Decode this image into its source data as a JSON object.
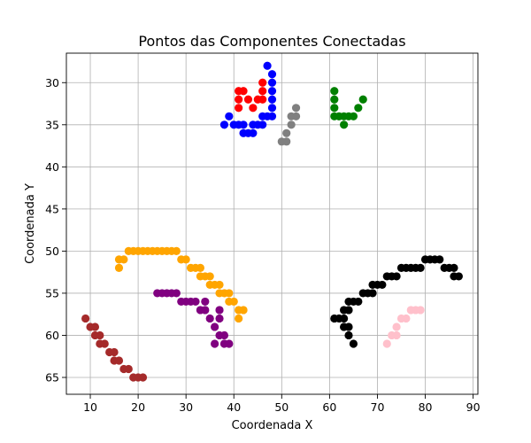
{
  "chart_data": {
    "type": "scatter",
    "title": "Pontos das Componentes Conectadas",
    "xlabel": "Coordenada X",
    "ylabel": "Coordenada Y",
    "xlim": [
      5,
      91
    ],
    "ylim": [
      67,
      26.5
    ],
    "y_inverted": true,
    "grid": true,
    "xticks": [
      10,
      20,
      30,
      40,
      50,
      60,
      70,
      80,
      90
    ],
    "yticks": [
      30,
      35,
      40,
      45,
      50,
      55,
      60,
      65
    ],
    "series": [
      {
        "color": "#ff0000",
        "points": [
          [
            41,
            31
          ],
          [
            42,
            31
          ],
          [
            43,
            32
          ],
          [
            41,
            32
          ],
          [
            41,
            33
          ],
          [
            44,
            33
          ],
          [
            45,
            32
          ],
          [
            46,
            32
          ],
          [
            46,
            31
          ],
          [
            46,
            30
          ]
        ]
      },
      {
        "color": "#0000ff",
        "points": [
          [
            47,
            28
          ],
          [
            48,
            29
          ],
          [
            48,
            30
          ],
          [
            48,
            31
          ],
          [
            48,
            32
          ],
          [
            48,
            33
          ],
          [
            48,
            34
          ],
          [
            47,
            34
          ],
          [
            46,
            34
          ],
          [
            46,
            35
          ],
          [
            45,
            35
          ],
          [
            44,
            36
          ],
          [
            43,
            36
          ],
          [
            42,
            36
          ],
          [
            42,
            35
          ],
          [
            41,
            35
          ],
          [
            40,
            35
          ],
          [
            38,
            35
          ],
          [
            39,
            34
          ],
          [
            44,
            35
          ]
        ]
      },
      {
        "color": "#808080",
        "points": [
          [
            53,
            33
          ],
          [
            53,
            34
          ],
          [
            52,
            34
          ],
          [
            52,
            35
          ],
          [
            51,
            36
          ],
          [
            51,
            37
          ],
          [
            50,
            37
          ]
        ]
      },
      {
        "color": "#008000",
        "points": [
          [
            61,
            31
          ],
          [
            61,
            32
          ],
          [
            61,
            33
          ],
          [
            61,
            34
          ],
          [
            62,
            34
          ],
          [
            63,
            34
          ],
          [
            64,
            34
          ],
          [
            65,
            34
          ],
          [
            66,
            33
          ],
          [
            67,
            32
          ],
          [
            63,
            35
          ]
        ]
      },
      {
        "color": "#ffa500",
        "points": [
          [
            16,
            52
          ],
          [
            16,
            51
          ],
          [
            17,
            51
          ],
          [
            18,
            50
          ],
          [
            19,
            50
          ],
          [
            20,
            50
          ],
          [
            21,
            50
          ],
          [
            22,
            50
          ],
          [
            23,
            50
          ],
          [
            24,
            50
          ],
          [
            25,
            50
          ],
          [
            26,
            50
          ],
          [
            27,
            50
          ],
          [
            28,
            50
          ],
          [
            29,
            51
          ],
          [
            30,
            51
          ],
          [
            31,
            52
          ],
          [
            32,
            52
          ],
          [
            33,
            52
          ],
          [
            33,
            53
          ],
          [
            34,
            53
          ],
          [
            35,
            53
          ],
          [
            35,
            54
          ],
          [
            36,
            54
          ],
          [
            37,
            54
          ],
          [
            37,
            55
          ],
          [
            38,
            55
          ],
          [
            39,
            55
          ],
          [
            39,
            56
          ],
          [
            40,
            56
          ],
          [
            41,
            57
          ],
          [
            42,
            57
          ],
          [
            41,
            58
          ]
        ]
      },
      {
        "color": "#800080",
        "points": [
          [
            24,
            55
          ],
          [
            25,
            55
          ],
          [
            26,
            55
          ],
          [
            27,
            55
          ],
          [
            28,
            55
          ],
          [
            29,
            56
          ],
          [
            30,
            56
          ],
          [
            31,
            56
          ],
          [
            32,
            56
          ],
          [
            33,
            57
          ],
          [
            34,
            57
          ],
          [
            34,
            56
          ],
          [
            35,
            58
          ],
          [
            36,
            59
          ],
          [
            37,
            60
          ],
          [
            38,
            60
          ],
          [
            37,
            57
          ],
          [
            37,
            58
          ],
          [
            38,
            61
          ],
          [
            39,
            61
          ],
          [
            36,
            61
          ]
        ]
      },
      {
        "color": "#a52a2a",
        "points": [
          [
            9,
            58
          ],
          [
            10,
            59
          ],
          [
            11,
            59
          ],
          [
            11,
            60
          ],
          [
            12,
            60
          ],
          [
            12,
            61
          ],
          [
            13,
            61
          ],
          [
            14,
            62
          ],
          [
            15,
            62
          ],
          [
            15,
            63
          ],
          [
            16,
            63
          ],
          [
            17,
            64
          ],
          [
            18,
            64
          ],
          [
            19,
            65
          ],
          [
            20,
            65
          ],
          [
            21,
            65
          ]
        ]
      },
      {
        "color": "#000000",
        "points": [
          [
            61,
            58
          ],
          [
            62,
            58
          ],
          [
            63,
            58
          ],
          [
            63,
            59
          ],
          [
            64,
            59
          ],
          [
            64,
            60
          ],
          [
            65,
            61
          ],
          [
            63,
            57
          ],
          [
            64,
            57
          ],
          [
            64,
            56
          ],
          [
            65,
            56
          ],
          [
            66,
            56
          ],
          [
            67,
            55
          ],
          [
            68,
            55
          ],
          [
            69,
            55
          ],
          [
            69,
            54
          ],
          [
            70,
            54
          ],
          [
            71,
            54
          ],
          [
            72,
            53
          ],
          [
            73,
            53
          ],
          [
            74,
            53
          ],
          [
            75,
            52
          ],
          [
            76,
            52
          ],
          [
            77,
            52
          ],
          [
            78,
            52
          ],
          [
            79,
            52
          ],
          [
            80,
            51
          ],
          [
            81,
            51
          ],
          [
            82,
            51
          ],
          [
            83,
            51
          ],
          [
            84,
            52
          ],
          [
            85,
            52
          ],
          [
            86,
            52
          ],
          [
            86,
            53
          ],
          [
            87,
            53
          ]
        ]
      },
      {
        "color": "#ffc0cb",
        "points": [
          [
            72,
            61
          ],
          [
            73,
            60
          ],
          [
            74,
            60
          ],
          [
            74,
            59
          ],
          [
            75,
            58
          ],
          [
            76,
            58
          ],
          [
            77,
            57
          ],
          [
            78,
            57
          ],
          [
            79,
            57
          ]
        ]
      }
    ]
  }
}
